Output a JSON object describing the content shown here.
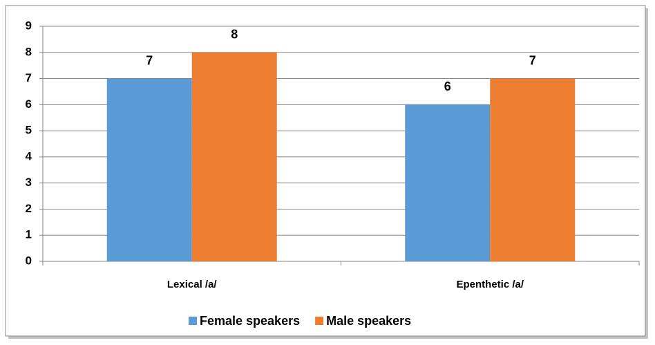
{
  "chart_data": {
    "type": "bar",
    "categories": [
      "Lexical /a/",
      "Epenthetic /a/"
    ],
    "series": [
      {
        "name": "Female speakers",
        "color": "#5b9bd5",
        "values": [
          7,
          6
        ]
      },
      {
        "name": "Male speakers",
        "color": "#ed7d31",
        "values": [
          8,
          7
        ]
      }
    ],
    "ylim": [
      0,
      9
    ],
    "yticks": [
      0,
      1,
      2,
      3,
      4,
      5,
      6,
      7,
      8,
      9
    ],
    "grid": true,
    "legend": "bottom"
  }
}
